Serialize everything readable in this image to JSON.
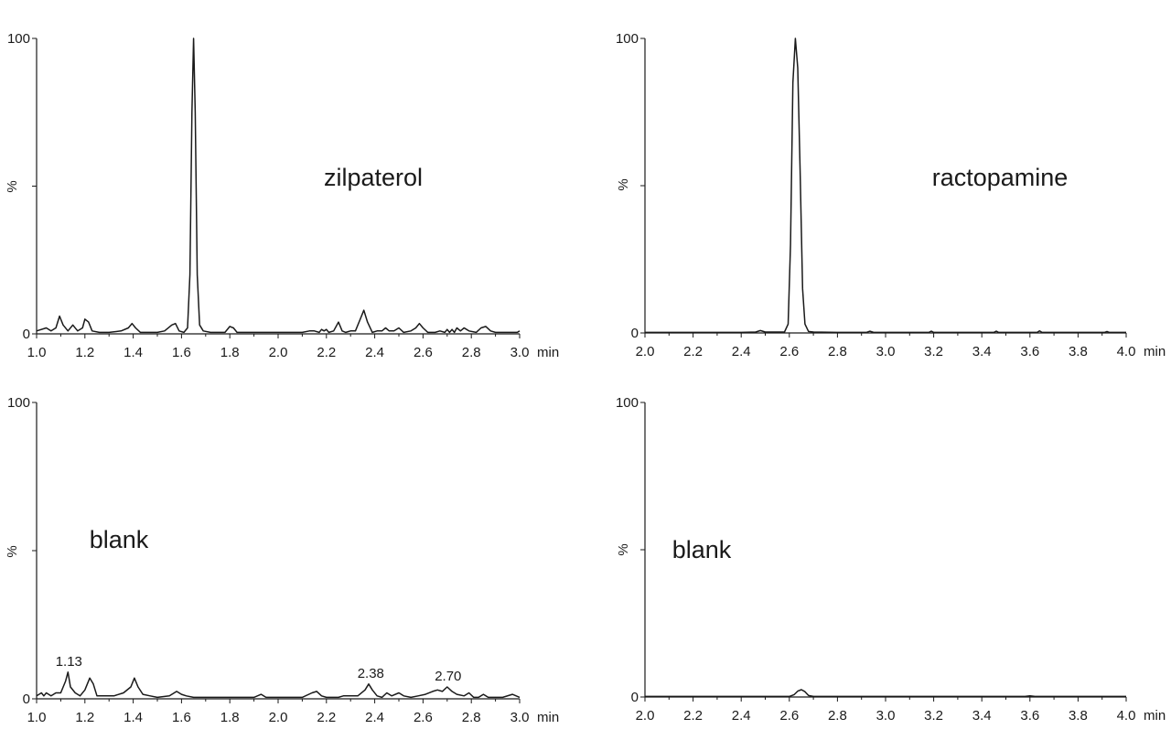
{
  "chart_data": [
    {
      "type": "line",
      "title": "zilpaterol",
      "xlabel": "",
      "ylabel": "%",
      "x_unit": "min",
      "xlim": [
        1.0,
        3.0
      ],
      "ylim": [
        0,
        100
      ],
      "x_ticks": [
        "1.0",
        "1.2",
        "1.4",
        "1.6",
        "1.8",
        "2.0",
        "2.2",
        "2.4",
        "2.6",
        "2.8",
        "3.0"
      ],
      "y_ticks": [
        "0",
        "100"
      ],
      "annotations": [],
      "series": [
        {
          "x": [
            1.0,
            1.04,
            1.06,
            1.08,
            1.095,
            1.11,
            1.13,
            1.15,
            1.17,
            1.19,
            1.2,
            1.215,
            1.23,
            1.26,
            1.3,
            1.35,
            1.38,
            1.395,
            1.41,
            1.43,
            1.46,
            1.5,
            1.53,
            1.56,
            1.575,
            1.59,
            1.61,
            1.625,
            1.635,
            1.643,
            1.65,
            1.657,
            1.665,
            1.675,
            1.69,
            1.72,
            1.75,
            1.78,
            1.8,
            1.815,
            1.83,
            1.86,
            1.9,
            2.0,
            2.1,
            2.13,
            2.15,
            2.17,
            2.18,
            2.19,
            2.2,
            2.21,
            2.23,
            2.25,
            2.265,
            2.28,
            2.3,
            2.32,
            2.34,
            2.355,
            2.37,
            2.39,
            2.41,
            2.43,
            2.445,
            2.46,
            2.48,
            2.5,
            2.52,
            2.55,
            2.57,
            2.585,
            2.6,
            2.62,
            2.65,
            2.67,
            2.69,
            2.7,
            2.71,
            2.72,
            2.73,
            2.74,
            2.755,
            2.77,
            2.79,
            2.82,
            2.84,
            2.86,
            2.88,
            2.9,
            2.95,
            2.99,
            3.0
          ],
          "y": [
            1,
            2,
            1,
            2,
            6,
            3,
            1,
            3,
            1,
            2,
            5,
            4,
            1,
            0.5,
            0.5,
            1,
            2,
            3.5,
            2,
            0.5,
            0.5,
            0.5,
            1,
            3,
            3.5,
            1,
            0.5,
            2,
            20,
            75,
            100,
            75,
            20,
            3,
            1,
            0.5,
            0.5,
            0.5,
            2.5,
            2,
            0.5,
            0.5,
            0.5,
            0.5,
            0.5,
            1,
            1,
            0.5,
            1.5,
            1,
            1.5,
            0.5,
            1,
            4,
            1,
            0.5,
            1,
            1,
            5,
            8,
            4,
            0.5,
            1,
            1,
            2,
            1,
            1,
            2,
            0.5,
            1,
            2,
            3.5,
            2,
            0.5,
            0.5,
            1,
            0.5,
            1.5,
            0.5,
            1.5,
            0.5,
            2,
            1,
            2,
            1,
            0.5,
            2,
            2.5,
            1,
            0.5,
            0.5,
            0.5,
            1
          ]
        }
      ]
    },
    {
      "type": "line",
      "title": "ractopamine",
      "xlabel": "",
      "ylabel": "%",
      "x_unit": "min",
      "xlim": [
        2.0,
        4.0
      ],
      "ylim": [
        0,
        100
      ],
      "x_ticks": [
        "2.0",
        "2.2",
        "2.4",
        "2.6",
        "2.8",
        "3.0",
        "3.2",
        "3.4",
        "3.6",
        "3.8",
        "4.0"
      ],
      "y_ticks": [
        "0",
        "100"
      ],
      "annotations": [],
      "series": [
        {
          "x": [
            2.0,
            2.4,
            2.46,
            2.48,
            2.5,
            2.58,
            2.595,
            2.605,
            2.615,
            2.625,
            2.635,
            2.645,
            2.655,
            2.665,
            2.68,
            2.7,
            2.8,
            2.92,
            2.935,
            2.95,
            3.18,
            3.19,
            3.2,
            3.45,
            3.46,
            3.47,
            3.63,
            3.64,
            3.65,
            3.91,
            3.92,
            3.93,
            4.0
          ],
          "y": [
            0.2,
            0.2,
            0.3,
            0.8,
            0.3,
            0.3,
            3,
            30,
            85,
            100,
            90,
            55,
            15,
            3,
            0.5,
            0.3,
            0.2,
            0.2,
            0.6,
            0.2,
            0.2,
            0.6,
            0.2,
            0.2,
            0.6,
            0.2,
            0.2,
            0.7,
            0.2,
            0.2,
            0.5,
            0.2,
            0.2
          ]
        }
      ]
    },
    {
      "type": "line",
      "title": "blank",
      "xlabel": "",
      "ylabel": "%",
      "x_unit": "min",
      "xlim": [
        1.0,
        3.0
      ],
      "ylim": [
        0,
        100
      ],
      "x_ticks": [
        "1.0",
        "1.2",
        "1.4",
        "1.6",
        "1.8",
        "2.0",
        "2.2",
        "2.4",
        "2.6",
        "2.8",
        "3.0"
      ],
      "y_ticks": [
        "0",
        "100"
      ],
      "annotations": [
        {
          "text": "1.13",
          "x": 1.13,
          "y": 9
        },
        {
          "text": "2.38",
          "x": 2.38,
          "y": 5
        },
        {
          "text": "2.70",
          "x": 2.7,
          "y": 4
        }
      ],
      "series": [
        {
          "x": [
            1.0,
            1.02,
            1.03,
            1.04,
            1.06,
            1.08,
            1.1,
            1.12,
            1.13,
            1.14,
            1.16,
            1.18,
            1.2,
            1.22,
            1.235,
            1.25,
            1.28,
            1.32,
            1.36,
            1.39,
            1.405,
            1.42,
            1.44,
            1.47,
            1.5,
            1.55,
            1.58,
            1.6,
            1.62,
            1.65,
            1.7,
            1.8,
            1.9,
            1.93,
            1.95,
            1.97,
            2.1,
            2.14,
            2.16,
            2.18,
            2.2,
            2.25,
            2.27,
            2.3,
            2.33,
            2.36,
            2.375,
            2.39,
            2.41,
            2.43,
            2.45,
            2.47,
            2.5,
            2.52,
            2.55,
            2.58,
            2.61,
            2.64,
            2.66,
            2.68,
            2.7,
            2.72,
            2.74,
            2.77,
            2.79,
            2.81,
            2.83,
            2.85,
            2.87,
            2.9,
            2.93,
            2.97,
            3.0
          ],
          "y": [
            1,
            2,
            1,
            2,
            1,
            2,
            2,
            6,
            9,
            4,
            2,
            1,
            3,
            7,
            5,
            1,
            1,
            1,
            2,
            4,
            7,
            4,
            1.5,
            1,
            0.5,
            1,
            2.5,
            1.5,
            1,
            0.5,
            0.5,
            0.5,
            0.5,
            1.5,
            0.5,
            0.5,
            0.5,
            2,
            2.5,
            1,
            0.5,
            0.5,
            1,
            1,
            1,
            3,
            5,
            3,
            1,
            0.5,
            2,
            1,
            2,
            1,
            0.5,
            1,
            1.5,
            2.5,
            3,
            2.5,
            4,
            2.5,
            1.5,
            1,
            2,
            0.5,
            0.5,
            1.5,
            0.5,
            0.5,
            0.5,
            1.5,
            0.5
          ]
        }
      ]
    },
    {
      "type": "line",
      "title": "blank",
      "xlabel": "",
      "ylabel": "%",
      "x_unit": "min",
      "xlim": [
        2.0,
        4.0
      ],
      "ylim": [
        0,
        100
      ],
      "x_ticks": [
        "2.0",
        "2.2",
        "2.4",
        "2.6",
        "2.8",
        "3.0",
        "3.2",
        "3.4",
        "3.6",
        "3.8",
        "4.0"
      ],
      "y_ticks": [
        "0",
        "100"
      ],
      "annotations": [],
      "series": [
        {
          "x": [
            2.0,
            2.6,
            2.62,
            2.635,
            2.65,
            2.665,
            2.68,
            2.7,
            3.58,
            3.6,
            3.62,
            4.0
          ],
          "y": [
            0.2,
            0.2,
            0.8,
            2,
            2.5,
            1.8,
            0.5,
            0.2,
            0.2,
            0.4,
            0.2,
            0.2
          ]
        }
      ]
    }
  ]
}
